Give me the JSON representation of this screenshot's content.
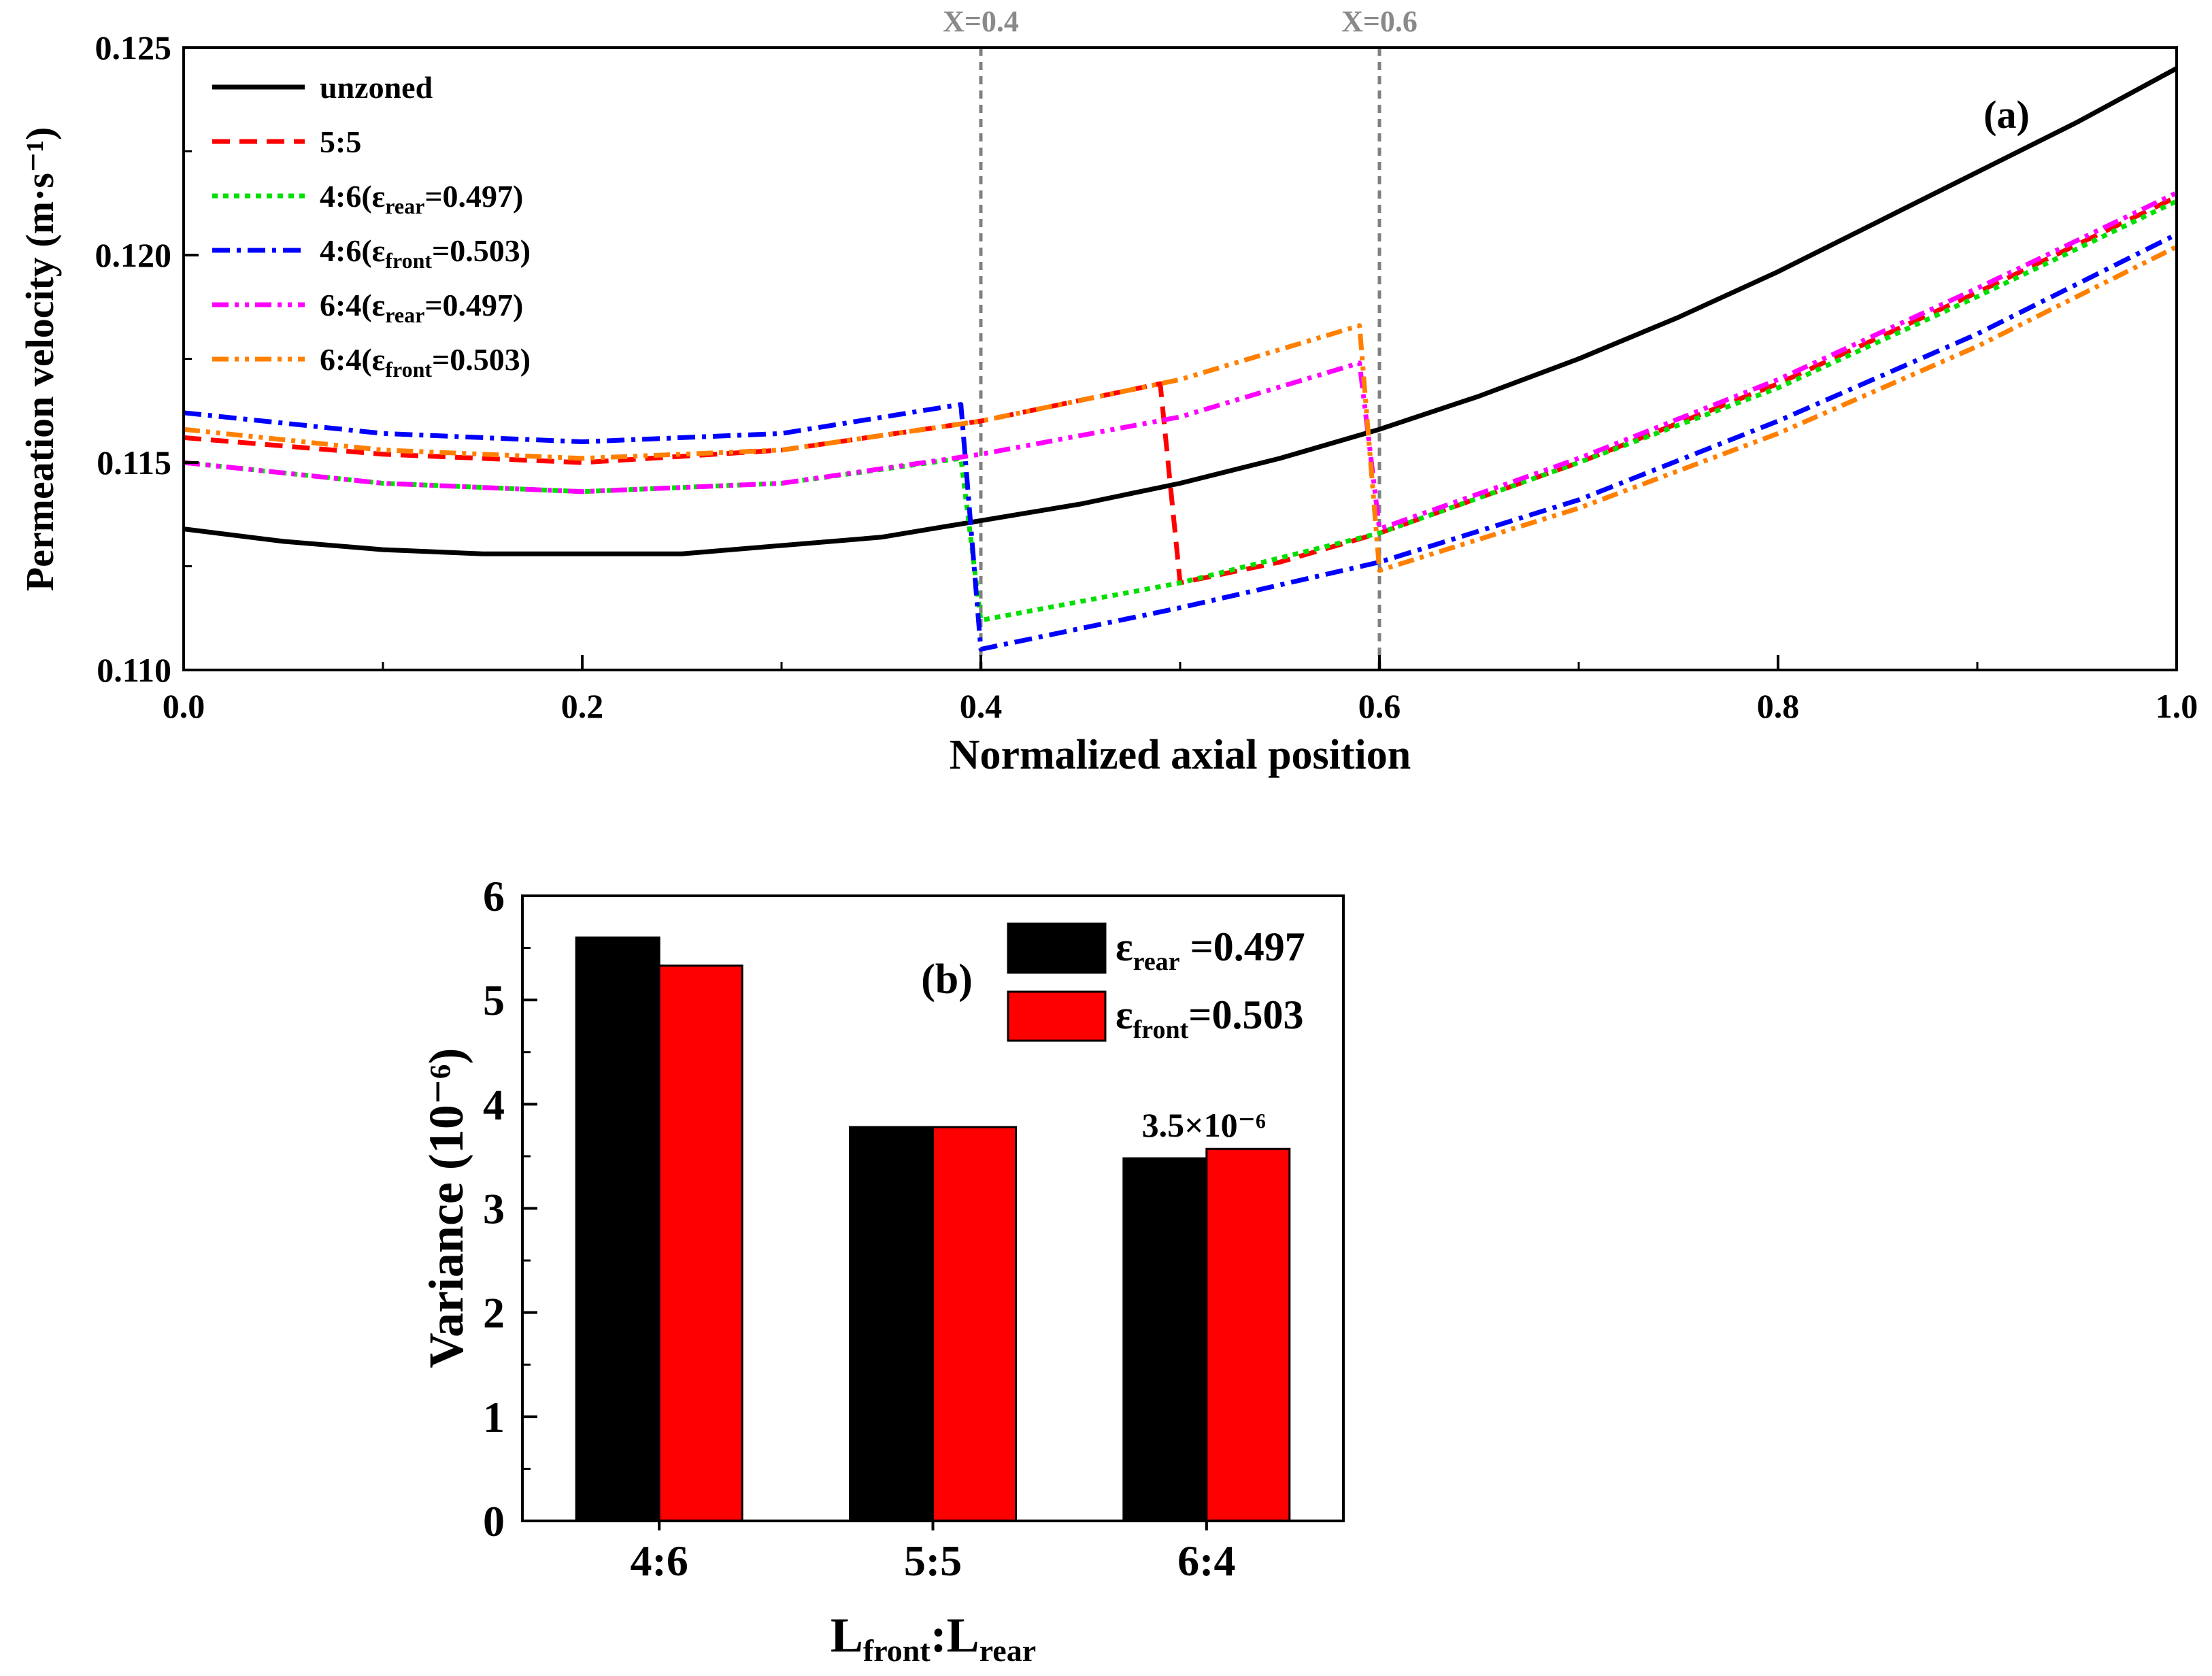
{
  "chart_data": [
    {
      "panel_label": "(a)",
      "type": "line",
      "xlabel": "Normalized axial position",
      "ylabel": "Permeation velocity (m·s⁻¹)",
      "xlim": [
        0.0,
        1.0
      ],
      "ylim": [
        0.11,
        0.125
      ],
      "xticks": [
        "0.0",
        "0.2",
        "0.4",
        "0.6",
        "0.8",
        "1.0"
      ],
      "yticks": [
        "0.110",
        "0.115",
        "0.120",
        "0.125"
      ],
      "legend_position": "top-left",
      "reference_lines": [
        {
          "x": 0.4,
          "label": "X=0.4"
        },
        {
          "x": 0.6,
          "label": "X=0.6"
        }
      ],
      "series": [
        {
          "name": "unzoned",
          "color": "#000000",
          "dash": "solid",
          "points": [
            [
              0.0,
              0.1134
            ],
            [
              0.05,
              0.1131
            ],
            [
              0.1,
              0.1129
            ],
            [
              0.15,
              0.1128
            ],
            [
              0.2,
              0.1128
            ],
            [
              0.25,
              0.1128
            ],
            [
              0.3,
              0.113
            ],
            [
              0.35,
              0.1132
            ],
            [
              0.4,
              0.1136
            ],
            [
              0.45,
              0.114
            ],
            [
              0.5,
              0.1145
            ],
            [
              0.55,
              0.1151
            ],
            [
              0.6,
              0.1158
            ],
            [
              0.65,
              0.1166
            ],
            [
              0.7,
              0.1175
            ],
            [
              0.75,
              0.1185
            ],
            [
              0.8,
              0.1196
            ],
            [
              0.85,
              0.1208
            ],
            [
              0.9,
              0.122
            ],
            [
              0.95,
              0.1232
            ],
            [
              1.0,
              0.1245
            ]
          ]
        },
        {
          "name": "5:5",
          "color": "#ff0000",
          "dash": "dash",
          "points": [
            [
              0.0,
              0.1156
            ],
            [
              0.1,
              0.1152
            ],
            [
              0.2,
              0.115
            ],
            [
              0.3,
              0.1153
            ],
            [
              0.4,
              0.116
            ],
            [
              0.49,
              0.1169
            ],
            [
              0.5,
              0.1121
            ],
            [
              0.55,
              0.1126
            ],
            [
              0.6,
              0.1133
            ],
            [
              0.7,
              0.115
            ],
            [
              0.8,
              0.1169
            ],
            [
              0.9,
              0.1191
            ],
            [
              1.0,
              0.1214
            ]
          ]
        },
        {
          "name": "4:6(εrear=0.497)",
          "label_main": "4:6(ε",
          "label_sub": "rear",
          "label_rest": "=0.497)",
          "color": "#00e000",
          "dash": "dot",
          "points": [
            [
              0.0,
              0.115
            ],
            [
              0.1,
              0.1145
            ],
            [
              0.2,
              0.1143
            ],
            [
              0.3,
              0.1145
            ],
            [
              0.39,
              0.1151
            ],
            [
              0.4,
              0.1112
            ],
            [
              0.5,
              0.1121
            ],
            [
              0.6,
              0.1133
            ],
            [
              0.7,
              0.115
            ],
            [
              0.8,
              0.1168
            ],
            [
              0.9,
              0.119
            ],
            [
              1.0,
              0.1213
            ]
          ]
        },
        {
          "name": "4:6(εfront=0.503)",
          "label_main": "4:6(ε",
          "label_sub": "front",
          "label_rest": "=0.503)",
          "color": "#0000ff",
          "dash": "dashdot",
          "points": [
            [
              0.0,
              0.1162
            ],
            [
              0.1,
              0.1157
            ],
            [
              0.2,
              0.1155
            ],
            [
              0.3,
              0.1157
            ],
            [
              0.39,
              0.1164
            ],
            [
              0.4,
              0.1105
            ],
            [
              0.5,
              0.1115
            ],
            [
              0.6,
              0.1126
            ],
            [
              0.7,
              0.1141
            ],
            [
              0.8,
              0.116
            ],
            [
              0.9,
              0.1181
            ],
            [
              1.0,
              0.1205
            ]
          ]
        },
        {
          "name": "6:4(εrear=0.497)",
          "label_main": "6:4(ε",
          "label_sub": "rear",
          "label_rest": "=0.497)",
          "color": "#ff00ff",
          "dash": "dashdotdot",
          "points": [
            [
              0.0,
              0.115
            ],
            [
              0.1,
              0.1145
            ],
            [
              0.2,
              0.1143
            ],
            [
              0.3,
              0.1145
            ],
            [
              0.4,
              0.1152
            ],
            [
              0.5,
              0.1161
            ],
            [
              0.59,
              0.1174
            ],
            [
              0.6,
              0.1134
            ],
            [
              0.7,
              0.1151
            ],
            [
              0.8,
              0.117
            ],
            [
              0.9,
              0.1192
            ],
            [
              1.0,
              0.1215
            ]
          ]
        },
        {
          "name": "6:4(εfront=0.503)",
          "label_main": "6:4(ε",
          "label_sub": "front",
          "label_rest": "=0.503)",
          "color": "#ff8000",
          "dash": "dashdotdot",
          "points": [
            [
              0.0,
              0.1158
            ],
            [
              0.1,
              0.1153
            ],
            [
              0.2,
              0.1151
            ],
            [
              0.3,
              0.1153
            ],
            [
              0.4,
              0.116
            ],
            [
              0.5,
              0.117
            ],
            [
              0.59,
              0.1183
            ],
            [
              0.6,
              0.1124
            ],
            [
              0.7,
              0.1139
            ],
            [
              0.8,
              0.1157
            ],
            [
              0.9,
              0.1178
            ],
            [
              1.0,
              0.1202
            ]
          ]
        }
      ]
    },
    {
      "panel_label": "(b)",
      "type": "bar",
      "xlabel_main": "L",
      "xlabel_sub1": "front",
      "xlabel_mid": ":L",
      "xlabel_sub2": "rear",
      "ylabel": "Variance (10⁻⁶)",
      "categories": [
        "4:6",
        "5:5",
        "6:4"
      ],
      "ylim": [
        0,
        6
      ],
      "yticks": [
        "0",
        "1",
        "2",
        "3",
        "4",
        "5",
        "6"
      ],
      "legend_position": "top-right",
      "annotation": {
        "text": "3.5×10⁻⁶",
        "category": "6:4"
      },
      "series": [
        {
          "name": "εrear =0.497",
          "label_main": "ε",
          "label_sub": "rear",
          "label_rest": " =0.497",
          "color": "#000000",
          "values": [
            5.6,
            3.78,
            3.48
          ]
        },
        {
          "name": "εfront=0.503",
          "label_main": "ε",
          "label_sub": "front",
          "label_rest": "=0.503",
          "color": "#ff0000",
          "values": [
            5.33,
            3.78,
            3.57
          ]
        }
      ]
    }
  ]
}
